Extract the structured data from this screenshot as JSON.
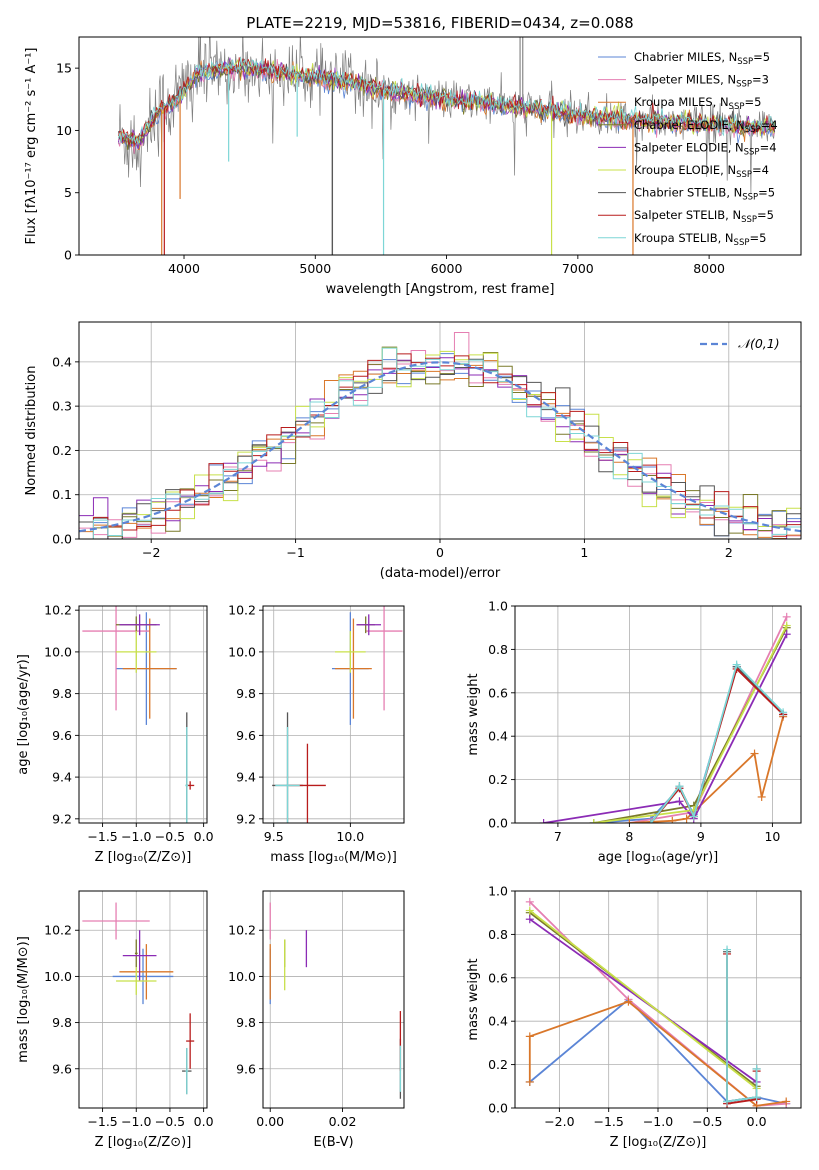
{
  "figure": {
    "title": "PLATE=2219, MJD=53816, FIBERID=0434, z=0.088"
  },
  "series_colors": {
    "Chabrier MILES": "#5b85d6",
    "Salpeter MILES": "#e57fb2",
    "Kroupa MILES": "#d9772a",
    "Chabrier ELODIE": "#7a7a2a",
    "Salpeter ELODIE": "#8b2bb5",
    "Kroupa ELODIE": "#c8e04a",
    "Chabrier STELIB": "#555555",
    "Salpeter STELIB": "#b81c1c",
    "Kroupa STELIB": "#7dd6d6"
  },
  "chart_data": [
    {
      "id": "spectrum",
      "type": "line",
      "title": "PLATE=2219, MJD=53816, FIBERID=0434, z=0.088",
      "xlabel": "wavelength [Angstrom, rest frame]",
      "ylabel": "Flux [fλ10⁻¹⁷ erg cm⁻² s⁻¹ A⁻¹]",
      "xlim": [
        3200,
        8700
      ],
      "ylim": [
        0,
        17.5
      ],
      "xticks": [
        4000,
        5000,
        6000,
        7000,
        8000
      ],
      "yticks": [
        0,
        5,
        10,
        15
      ],
      "grid": false,
      "legend_position": "top-right",
      "legend": [
        {
          "label": "Chabrier MILES, N",
          "sub": "SSP",
          "tail": "=5",
          "series": "Chabrier MILES"
        },
        {
          "label": "Salpeter MILES, N",
          "sub": "SSP",
          "tail": "=3",
          "series": "Salpeter MILES"
        },
        {
          "label": "Kroupa MILES, N",
          "sub": "SSP",
          "tail": "=5",
          "series": "Kroupa MILES"
        },
        {
          "label": "Chabrier ELODIE, N",
          "sub": "SSP",
          "tail": "=4",
          "series": "Chabrier ELODIE"
        },
        {
          "label": "Salpeter ELODIE, N",
          "sub": "SSP",
          "tail": "=4",
          "series": "Salpeter ELODIE"
        },
        {
          "label": "Kroupa ELODIE, N",
          "sub": "SSP",
          "tail": "=4",
          "series": "Kroupa ELODIE"
        },
        {
          "label": "Chabrier STELIB, N",
          "sub": "SSP",
          "tail": "=5",
          "series": "Chabrier STELIB"
        },
        {
          "label": "Salpeter STELIB, N",
          "sub": "SSP",
          "tail": "=5",
          "series": "Salpeter STELIB"
        },
        {
          "label": "Kroupa STELIB, N",
          "sub": "SSP",
          "tail": "=5",
          "series": "Kroupa STELIB"
        }
      ],
      "continuum": [
        [
          3500,
          9.5
        ],
        [
          3650,
          9.0
        ],
        [
          3800,
          11.5
        ],
        [
          3950,
          12.5
        ],
        [
          4100,
          14.5
        ],
        [
          4300,
          15.0
        ],
        [
          4500,
          15.0
        ],
        [
          4800,
          14.5
        ],
        [
          5000,
          14.3
        ],
        [
          5200,
          14.0
        ],
        [
          5500,
          13.3
        ],
        [
          5800,
          12.8
        ],
        [
          6000,
          12.5
        ],
        [
          6300,
          12.2
        ],
        [
          6600,
          11.8
        ],
        [
          6900,
          11.4
        ],
        [
          7200,
          11.0
        ],
        [
          7500,
          10.8
        ],
        [
          7800,
          10.6
        ],
        [
          8000,
          10.5
        ],
        [
          8200,
          10.3
        ],
        [
          8500,
          10.2
        ]
      ],
      "absorption_lines": [
        {
          "x": 3830,
          "y": 0,
          "series": "Kroupa MILES"
        },
        {
          "x": 3850,
          "y": 0,
          "series": "Salpeter STELIB"
        },
        {
          "x": 3970,
          "y": 4.5,
          "series": "Kroupa MILES"
        },
        {
          "x": 4340,
          "y": 7.5,
          "series": "Kroupa STELIB"
        },
        {
          "x": 4862,
          "y": 9.5,
          "series": "Kroupa STELIB"
        },
        {
          "x": 5130,
          "y": 0,
          "series": "Chabrier STELIB"
        },
        {
          "x": 5520,
          "y": 0,
          "series": "Kroupa STELIB"
        },
        {
          "x": 6800,
          "y": 0,
          "series": "Kroupa ELODIE"
        },
        {
          "x": 7420,
          "y": 0,
          "series": "Kroupa MILES"
        }
      ]
    },
    {
      "id": "residuals",
      "type": "histogram",
      "xlabel": "(data-model)/error",
      "ylabel": "Normed distribution",
      "xlim": [
        -2.5,
        2.5
      ],
      "ylim": [
        0,
        0.49
      ],
      "xticks": [
        -2,
        -1,
        0,
        1,
        2
      ],
      "yticks": [
        0.0,
        0.1,
        0.2,
        0.3,
        0.4
      ],
      "grid": true,
      "legend_position": "top-right",
      "legend": [
        {
          "label": "𝒩(0,1)",
          "style": "dashed",
          "color": "#5b85d6"
        }
      ],
      "gaussian": {
        "mean": 0,
        "sigma": 1,
        "color": "#5b85d6"
      },
      "bin_width": 0.1
    },
    {
      "id": "age-vs-Z",
      "type": "errorbar",
      "xlabel": "Z [log₁₀(Z/Z⊙)]",
      "ylabel": "age  [log₁₀(age/yr)]",
      "xlim": [
        -1.85,
        0.05
      ],
      "ylim": [
        9.18,
        10.22
      ],
      "xticks": [
        -1.5,
        -1.0,
        -0.5,
        0.0
      ],
      "yticks": [
        9.2,
        9.4,
        9.6,
        9.8,
        10.0,
        10.2
      ],
      "grid": true,
      "points": [
        {
          "x": -0.85,
          "y": 9.92,
          "xerr": 0.45,
          "yerr": 0.27,
          "series": "Chabrier MILES"
        },
        {
          "x": -1.3,
          "y": 10.1,
          "xerr": 0.5,
          "yerr": 0.38,
          "series": "Salpeter MILES"
        },
        {
          "x": -0.8,
          "y": 9.92,
          "xerr": 0.4,
          "yerr": 0.24,
          "series": "Kroupa MILES"
        },
        {
          "x": -1.0,
          "y": 10.13,
          "xerr": 0.3,
          "yerr": 0.04,
          "series": "Chabrier ELODIE"
        },
        {
          "x": -0.95,
          "y": 10.13,
          "xerr": 0.3,
          "yerr": 0.05,
          "series": "Salpeter ELODIE"
        },
        {
          "x": -1.0,
          "y": 10.0,
          "xerr": 0.3,
          "yerr": 0.1,
          "series": "Kroupa ELODIE"
        },
        {
          "x": -0.25,
          "y": 9.36,
          "xerr": 0.02,
          "yerr": 0.35,
          "series": "Chabrier STELIB"
        },
        {
          "x": -0.2,
          "y": 9.36,
          "xerr": 0.06,
          "yerr": 0.02,
          "series": "Salpeter STELIB"
        },
        {
          "x": -0.25,
          "y": 9.36,
          "xerr": 0.02,
          "yerr": 0.28,
          "series": "Kroupa STELIB"
        }
      ]
    },
    {
      "id": "age-vs-mass",
      "type": "errorbar",
      "xlabel": "mass [log₁₀(M/M⊙)]",
      "ylabel": "",
      "xlim": [
        9.43,
        10.35
      ],
      "ylim": [
        9.18,
        10.22
      ],
      "xticks": [
        9.5,
        10.0
      ],
      "yticks": [
        9.2,
        9.4,
        9.6,
        9.8,
        10.0,
        10.2
      ],
      "grid": true,
      "points": [
        {
          "x": 10.0,
          "y": 9.92,
          "xerr": 0.12,
          "yerr": 0.27,
          "series": "Chabrier MILES"
        },
        {
          "x": 10.22,
          "y": 10.1,
          "xerr": 0.12,
          "yerr": 0.38,
          "series": "Salpeter MILES"
        },
        {
          "x": 10.02,
          "y": 9.92,
          "xerr": 0.12,
          "yerr": 0.24,
          "series": "Kroupa MILES"
        },
        {
          "x": 10.1,
          "y": 10.13,
          "xerr": 0.06,
          "yerr": 0.04,
          "series": "Chabrier ELODIE"
        },
        {
          "x": 10.12,
          "y": 10.13,
          "xerr": 0.08,
          "yerr": 0.05,
          "series": "Salpeter ELODIE"
        },
        {
          "x": 10.0,
          "y": 10.0,
          "xerr": 0.1,
          "yerr": 0.1,
          "series": "Kroupa ELODIE"
        },
        {
          "x": 9.59,
          "y": 9.36,
          "xerr": 0.1,
          "yerr": 0.35,
          "series": "Chabrier STELIB"
        },
        {
          "x": 9.72,
          "y": 9.36,
          "xerr": 0.12,
          "yerr": 0.2,
          "series": "Salpeter STELIB"
        },
        {
          "x": 9.59,
          "y": 9.36,
          "xerr": 0.08,
          "yerr": 0.28,
          "series": "Kroupa STELIB"
        }
      ]
    },
    {
      "id": "mass-weight-vs-age",
      "type": "line",
      "xlabel": "age  [log₁₀(age/yr)]",
      "ylabel": "mass weight",
      "xlim": [
        6.4,
        10.4
      ],
      "ylim": [
        0,
        1.0
      ],
      "xticks": [
        7,
        8,
        9,
        10
      ],
      "yticks": [
        0.0,
        0.2,
        0.4,
        0.6,
        0.8,
        1.0
      ],
      "grid": true,
      "series": [
        {
          "name": "Chabrier MILES",
          "x": [
            7.5,
            8.3,
            8.7,
            8.9,
            9.5,
            10.15
          ],
          "y": [
            0.0,
            0.02,
            0.16,
            0.04,
            0.72,
            0.5
          ]
        },
        {
          "name": "Salpeter MILES",
          "x": [
            8.0,
            8.9,
            10.2
          ],
          "y": [
            0.0,
            0.05,
            0.95
          ]
        },
        {
          "name": "Kroupa MILES",
          "x": [
            8.0,
            8.6,
            8.8,
            9.75,
            9.85,
            10.15
          ],
          "y": [
            0.0,
            0.01,
            0.02,
            0.32,
            0.12,
            0.49
          ]
        },
        {
          "name": "Chabrier ELODIE",
          "x": [
            7.5,
            8.9,
            10.2
          ],
          "y": [
            0.0,
            0.08,
            0.9
          ]
        },
        {
          "name": "Salpeter ELODIE",
          "x": [
            6.8,
            8.7,
            8.9,
            10.2
          ],
          "y": [
            0.0,
            0.1,
            0.02,
            0.87
          ]
        },
        {
          "name": "Kroupa ELODIE",
          "x": [
            7.5,
            8.9,
            10.2
          ],
          "y": [
            0.0,
            0.06,
            0.91
          ]
        },
        {
          "name": "Chabrier STELIB",
          "x": [
            8.3,
            8.7,
            8.9,
            9.5,
            10.15
          ],
          "y": [
            0.0,
            0.17,
            0.03,
            0.72,
            0.5
          ]
        },
        {
          "name": "Salpeter STELIB",
          "x": [
            8.3,
            8.7,
            8.9,
            9.5,
            10.15
          ],
          "y": [
            0.0,
            0.16,
            0.03,
            0.71,
            0.5
          ]
        },
        {
          "name": "Kroupa STELIB",
          "x": [
            8.3,
            8.7,
            8.9,
            9.5,
            10.15
          ],
          "y": [
            0.0,
            0.17,
            0.03,
            0.73,
            0.51
          ]
        }
      ]
    },
    {
      "id": "mass-vs-Z",
      "type": "errorbar",
      "xlabel": "Z [log₁₀(Z/Z⊙)]",
      "ylabel": "mass [log₁₀(M/M⊙)]",
      "xlim": [
        -1.85,
        0.05
      ],
      "ylim": [
        9.43,
        10.37
      ],
      "xticks": [
        -1.5,
        -1.0,
        -0.5,
        0.0
      ],
      "yticks": [
        9.6,
        9.8,
        10.0,
        10.2
      ],
      "grid": true,
      "points": [
        {
          "x": -0.9,
          "y": 10.0,
          "xerr": 0.45,
          "yerr": 0.12,
          "series": "Chabrier MILES"
        },
        {
          "x": -1.3,
          "y": 10.24,
          "xerr": 0.5,
          "yerr": 0.08,
          "series": "Salpeter MILES"
        },
        {
          "x": -0.85,
          "y": 10.02,
          "xerr": 0.4,
          "yerr": 0.12,
          "series": "Kroupa MILES"
        },
        {
          "x": -1.0,
          "y": 10.1,
          "xerr": 0.02,
          "yerr": 0.06,
          "series": "Chabrier ELODIE"
        },
        {
          "x": -0.95,
          "y": 10.09,
          "xerr": 0.25,
          "yerr": 0.11,
          "series": "Salpeter ELODIE"
        },
        {
          "x": -1.0,
          "y": 9.98,
          "xerr": 0.3,
          "yerr": 0.06,
          "series": "Kroupa ELODIE"
        },
        {
          "x": -0.25,
          "y": 9.59,
          "xerr": 0.07,
          "yerr": 0.1,
          "series": "Chabrier STELIB"
        },
        {
          "x": -0.2,
          "y": 9.72,
          "xerr": 0.06,
          "yerr": 0.12,
          "series": "Salpeter STELIB"
        },
        {
          "x": -0.25,
          "y": 9.59,
          "xerr": 0.02,
          "yerr": 0.1,
          "series": "Kroupa STELIB"
        }
      ]
    },
    {
      "id": "mass-vs-ebv",
      "type": "errorbar",
      "xlabel": "E(B-V)",
      "ylabel": "",
      "xlim": [
        -0.002,
        0.037
      ],
      "ylim": [
        9.43,
        10.37
      ],
      "xticks": [
        0.0,
        0.02
      ],
      "yticks": [
        9.6,
        9.8,
        10.0,
        10.2
      ],
      "grid": true,
      "points": [
        {
          "x": 0.0,
          "y": 10.0,
          "xerr": 0,
          "yerr": 0.12,
          "series": "Chabrier MILES"
        },
        {
          "x": 0.0,
          "y": 10.24,
          "xerr": 0,
          "yerr": 0.08,
          "series": "Salpeter MILES"
        },
        {
          "x": 0.0,
          "y": 10.02,
          "xerr": 0,
          "yerr": 0.12,
          "series": "Kroupa MILES"
        },
        {
          "x": 0.004,
          "y": 10.1,
          "xerr": 0,
          "yerr": 0.06,
          "series": "Chabrier ELODIE"
        },
        {
          "x": 0.01,
          "y": 10.12,
          "xerr": 0,
          "yerr": 0.08,
          "series": "Salpeter ELODIE"
        },
        {
          "x": 0.004,
          "y": 10.05,
          "xerr": 0,
          "yerr": 0.11,
          "series": "Kroupa ELODIE"
        },
        {
          "x": 0.036,
          "y": 9.6,
          "xerr": 0,
          "yerr": 0.13,
          "series": "Chabrier STELIB"
        },
        {
          "x": 0.036,
          "y": 9.72,
          "xerr": 0,
          "yerr": 0.13,
          "series": "Salpeter STELIB"
        },
        {
          "x": 0.036,
          "y": 9.6,
          "xerr": 0,
          "yerr": 0.1,
          "series": "Kroupa STELIB"
        }
      ]
    },
    {
      "id": "mass-weight-vs-Z",
      "type": "line",
      "xlabel": "Z [log₁₀(Z/Z⊙)]",
      "ylabel": "mass weight",
      "xlim": [
        -2.45,
        0.45
      ],
      "ylim": [
        0,
        1.0
      ],
      "xticks": [
        -2.0,
        -1.5,
        -1.0,
        -0.5,
        0.0
      ],
      "yticks": [
        0.0,
        0.2,
        0.4,
        0.6,
        0.8,
        1.0
      ],
      "grid": true,
      "series": [
        {
          "name": "Chabrier MILES",
          "x": [
            -2.3,
            -1.3,
            -0.3,
            0.0,
            0.3
          ],
          "y": [
            0.12,
            0.5,
            0.03,
            0.05,
            0.02
          ]
        },
        {
          "name": "Salpeter MILES",
          "x": [
            -2.3,
            -1.3,
            0.0,
            0.3
          ],
          "y": [
            0.95,
            0.5,
            0.01,
            0.02
          ]
        },
        {
          "name": "Kroupa MILES",
          "x": [
            -2.3,
            -2.3,
            -1.3,
            0.0,
            0.3
          ],
          "y": [
            0.12,
            0.33,
            0.49,
            0.01,
            0.03
          ]
        },
        {
          "name": "Chabrier ELODIE",
          "x": [
            -2.3,
            0.0
          ],
          "y": [
            0.9,
            0.1
          ]
        },
        {
          "name": "Salpeter ELODIE",
          "x": [
            -2.3,
            0.0
          ],
          "y": [
            0.87,
            0.12
          ]
        },
        {
          "name": "Kroupa ELODIE",
          "x": [
            -2.3,
            0.0
          ],
          "y": [
            0.91,
            0.09
          ]
        },
        {
          "name": "Chabrier STELIB",
          "x": [
            -0.3,
            -0.3,
            0.0,
            0.0
          ],
          "y": [
            0.72,
            0.03,
            0.05,
            0.18
          ]
        },
        {
          "name": "Salpeter STELIB",
          "x": [
            -0.3,
            -0.3,
            0.0,
            0.0
          ],
          "y": [
            0.71,
            0.02,
            0.04,
            0.17
          ]
        },
        {
          "name": "Kroupa STELIB",
          "x": [
            -0.3,
            -0.3,
            0.0,
            0.0
          ],
          "y": [
            0.73,
            0.03,
            0.05,
            0.18
          ]
        }
      ]
    }
  ]
}
